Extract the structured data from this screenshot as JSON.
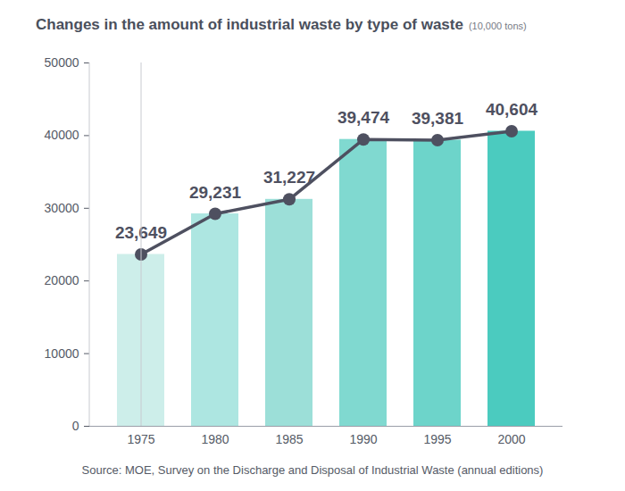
{
  "chart_data": {
    "type": "bar",
    "title": "Changes in the amount of industrial waste by type of waste",
    "subtitle": "(10,000 tons)",
    "caption": "Source: MOE, Survey on the Discharge and Disposal of Industrial Waste (annual editions)",
    "categories": [
      "1975",
      "1980",
      "1985",
      "1990",
      "1995",
      "2000"
    ],
    "series": [
      {
        "type": "bar",
        "colors": [
          "#cdeeea",
          "#ade6e1",
          "#9cdfd8",
          "#80d9d0",
          "#6dd4ca",
          "#4bcbbf"
        ],
        "values": [
          23649,
          29231,
          31227,
          39474,
          39381,
          40604
        ]
      },
      {
        "type": "line",
        "color": "#4e5060",
        "marker": "circle",
        "values": [
          23649,
          29231,
          31227,
          39474,
          39381,
          40604
        ],
        "value_labels": [
          "23,649",
          "29,231",
          "31,227",
          "39,474",
          "39,381",
          "40,604"
        ]
      }
    ],
    "data_labels": true,
    "ylim": [
      0,
      50000
    ],
    "yticks": [
      0,
      10000,
      20000,
      30000,
      40000,
      50000
    ],
    "grid": false
  }
}
